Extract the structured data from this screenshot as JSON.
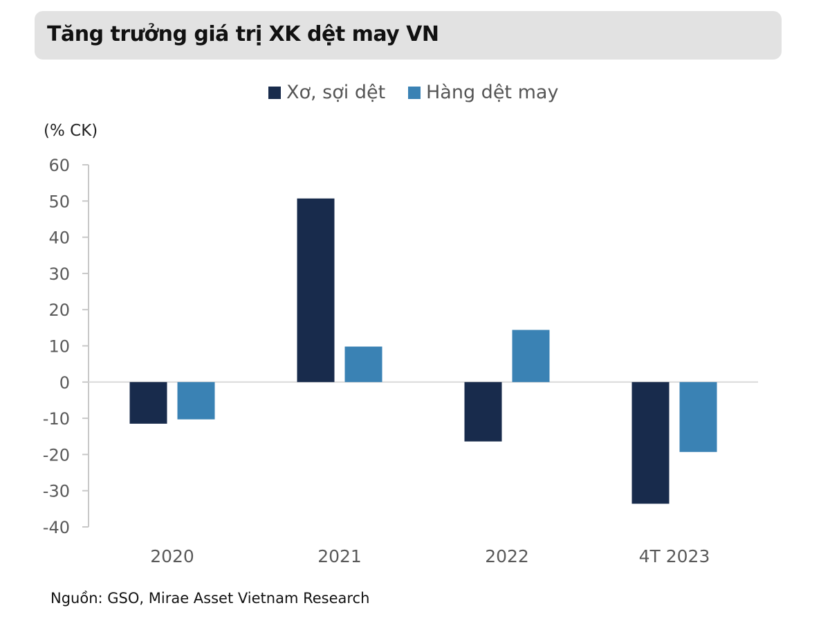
{
  "header": {
    "title": "Tăng trưởng giá trị XK dệt may VN"
  },
  "legend": [
    {
      "label": "Xơ, sợi dệt",
      "color": "#182b4c"
    },
    {
      "label": "Hàng dệt may",
      "color": "#3a82b4"
    }
  ],
  "unit_label": "(% CK)",
  "source": "Nguồn: GSO, Mirae Asset Vietnam Research",
  "chart_data": {
    "type": "bar",
    "title": "Tăng trưởng giá trị XK dệt may VN",
    "xlabel": "",
    "ylabel": "(% CK)",
    "categories": [
      "2020",
      "2021",
      "2022",
      "4T 2023"
    ],
    "series": [
      {
        "name": "Xơ, sợi dệt",
        "color": "#182b4c",
        "values": [
          -11.5,
          50.7,
          -16.4,
          -33.6
        ]
      },
      {
        "name": "Hàng dệt may",
        "color": "#3a82b4",
        "values": [
          -10.3,
          9.8,
          14.4,
          -19.3
        ]
      }
    ],
    "ylim": [
      -40,
      60
    ],
    "yticks": [
      60,
      50,
      40,
      30,
      20,
      10,
      0,
      -10,
      -20,
      -30,
      -40
    ],
    "grid": false,
    "legend_position": "top-center"
  }
}
